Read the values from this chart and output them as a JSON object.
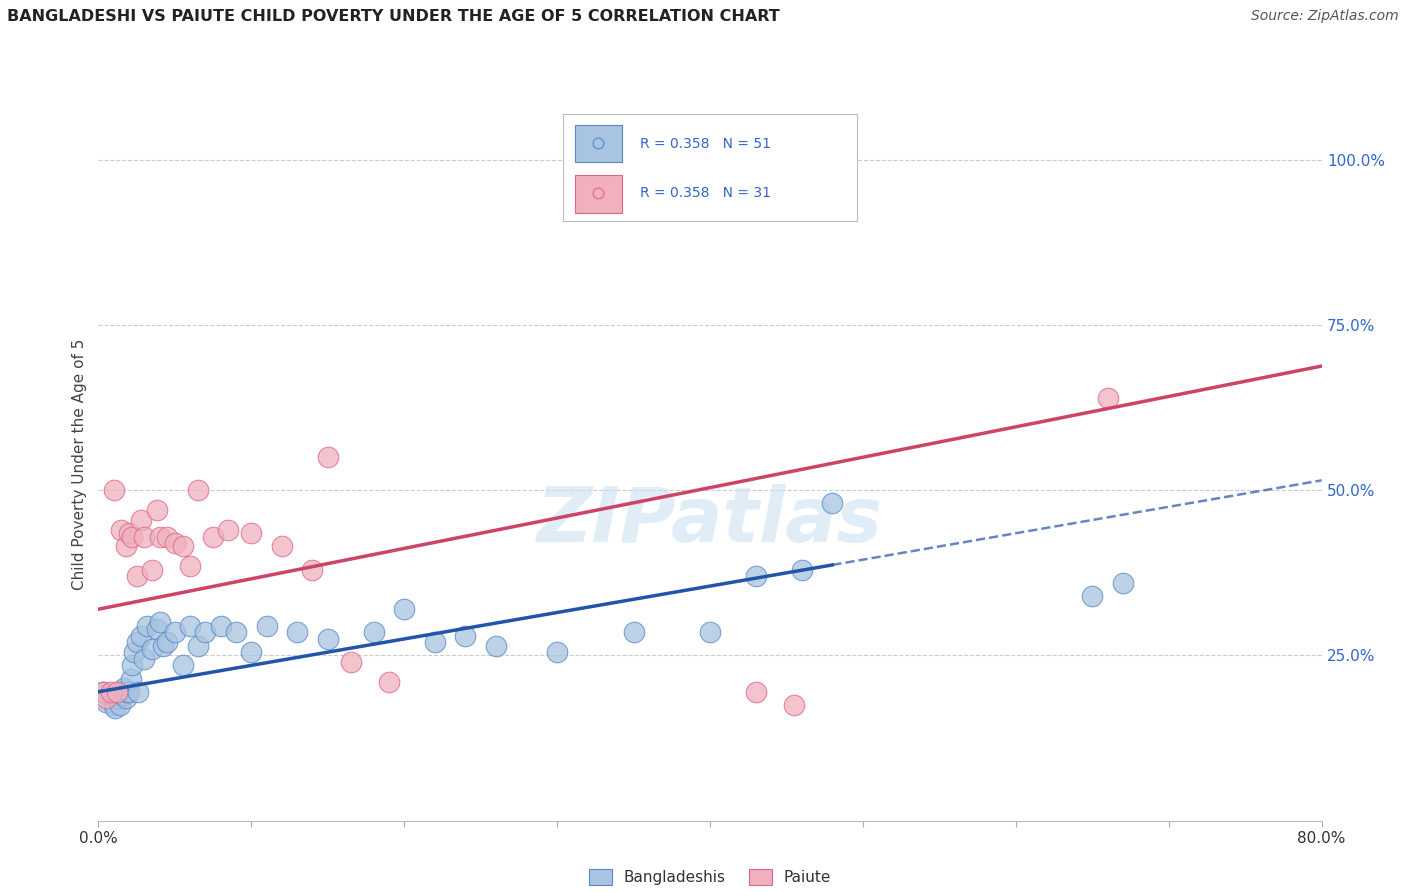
{
  "title": "BANGLADESHI VS PAIUTE CHILD POVERTY UNDER THE AGE OF 5 CORRELATION CHART",
  "source": "Source: ZipAtlas.com",
  "ylabel": "Child Poverty Under the Age of 5",
  "xlim": [
    0.0,
    0.8
  ],
  "ylim": [
    0.0,
    1.08
  ],
  "xticks": [
    0.0,
    0.1,
    0.2,
    0.3,
    0.4,
    0.5,
    0.6,
    0.7,
    0.8
  ],
  "xtick_labels": [
    "0.0%",
    "",
    "",
    "",
    "",
    "",
    "",
    "",
    "80.0%"
  ],
  "ytick_labels_right": [
    "25.0%",
    "50.0%",
    "75.0%",
    "100.0%"
  ],
  "ytick_vals_right": [
    0.25,
    0.5,
    0.75,
    1.0
  ],
  "legend_text_color": "#3366cc",
  "watermark_text": "ZIPatlas",
  "blue_color": "#a8c4e0",
  "pink_color": "#f0b0be",
  "blue_edge_color": "#5588cc",
  "pink_edge_color": "#dd6688",
  "blue_line_color": "#2255aa",
  "pink_line_color": "#cc4466",
  "grid_color": "#cccccc",
  "bg_color": "#ffffff",
  "fig_bg_color": "#ffffff",
  "blue_line_x_start": 0.0,
  "blue_line_x_end_solid": 0.48,
  "blue_line_x_end_dashed": 0.8,
  "blue_intercept": 0.195,
  "blue_slope": 0.4,
  "pink_intercept": 0.32,
  "pink_slope": 0.46,
  "blue_x": [
    0.003,
    0.005,
    0.008,
    0.01,
    0.011,
    0.012,
    0.013,
    0.014,
    0.015,
    0.016,
    0.017,
    0.018,
    0.019,
    0.02,
    0.021,
    0.022,
    0.023,
    0.025,
    0.026,
    0.028,
    0.03,
    0.032,
    0.035,
    0.038,
    0.04,
    0.042,
    0.045,
    0.05,
    0.055,
    0.06,
    0.065,
    0.07,
    0.08,
    0.09,
    0.1,
    0.11,
    0.13,
    0.15,
    0.18,
    0.2,
    0.22,
    0.24,
    0.26,
    0.3,
    0.35,
    0.4,
    0.43,
    0.46,
    0.48,
    0.65,
    0.67
  ],
  "blue_y": [
    0.195,
    0.18,
    0.19,
    0.175,
    0.17,
    0.185,
    0.195,
    0.175,
    0.195,
    0.19,
    0.2,
    0.185,
    0.195,
    0.195,
    0.215,
    0.235,
    0.255,
    0.27,
    0.195,
    0.28,
    0.245,
    0.295,
    0.26,
    0.29,
    0.3,
    0.265,
    0.27,
    0.285,
    0.235,
    0.295,
    0.265,
    0.285,
    0.295,
    0.285,
    0.255,
    0.295,
    0.285,
    0.275,
    0.285,
    0.32,
    0.27,
    0.28,
    0.265,
    0.255,
    0.285,
    0.285,
    0.37,
    0.38,
    0.48,
    0.34,
    0.36
  ],
  "pink_x": [
    0.003,
    0.005,
    0.008,
    0.01,
    0.012,
    0.015,
    0.018,
    0.02,
    0.022,
    0.025,
    0.028,
    0.03,
    0.035,
    0.038,
    0.04,
    0.045,
    0.05,
    0.055,
    0.06,
    0.065,
    0.075,
    0.085,
    0.1,
    0.12,
    0.14,
    0.15,
    0.165,
    0.19,
    0.43,
    0.455,
    0.66
  ],
  "pink_y": [
    0.195,
    0.185,
    0.195,
    0.5,
    0.195,
    0.44,
    0.415,
    0.435,
    0.43,
    0.37,
    0.455,
    0.43,
    0.38,
    0.47,
    0.43,
    0.43,
    0.42,
    0.415,
    0.385,
    0.5,
    0.43,
    0.44,
    0.435,
    0.415,
    0.38,
    0.55,
    0.24,
    0.21,
    0.195,
    0.175,
    0.64
  ],
  "n_blue": 51,
  "n_pink": 31
}
